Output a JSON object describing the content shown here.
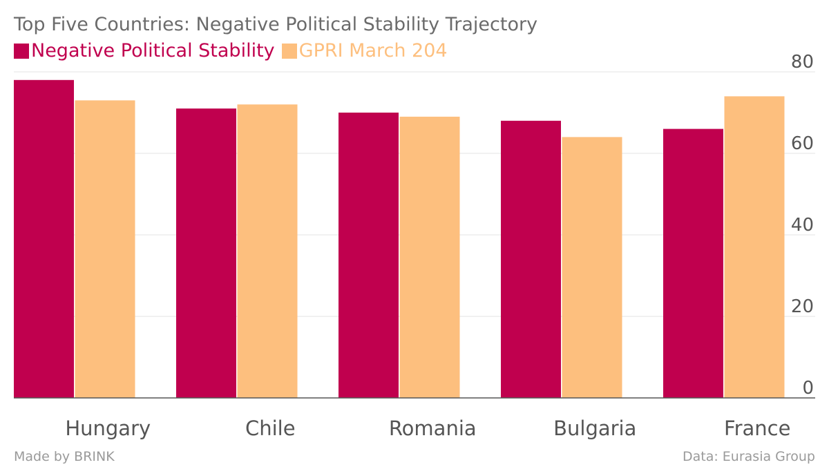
{
  "chart_data": {
    "type": "bar",
    "title": "Top Five Countries: Negative Political Stability Trajectory",
    "categories": [
      "Hungary",
      "Chile",
      "Romania",
      "Bulgaria",
      "France"
    ],
    "series": [
      {
        "name": "Negative Political Stability",
        "color": "#c0004e",
        "values": [
          78,
          71,
          70,
          68,
          66
        ]
      },
      {
        "name": "GPRI March 204",
        "color": "#fdbf7e",
        "values": [
          73,
          72,
          69,
          64,
          74
        ]
      }
    ],
    "ylim": [
      0,
      80
    ],
    "yticks": [
      0,
      20,
      40,
      60,
      80
    ],
    "ytick_labels": [
      "0",
      "20",
      "40",
      "60",
      "80"
    ],
    "xlabel": "",
    "ylabel": "",
    "grid": true,
    "legend_position": "top-left",
    "y_axis_position": "right"
  },
  "footer": {
    "source_left": "Made by BRINK",
    "source_right": "Data: Eurasia Group"
  }
}
